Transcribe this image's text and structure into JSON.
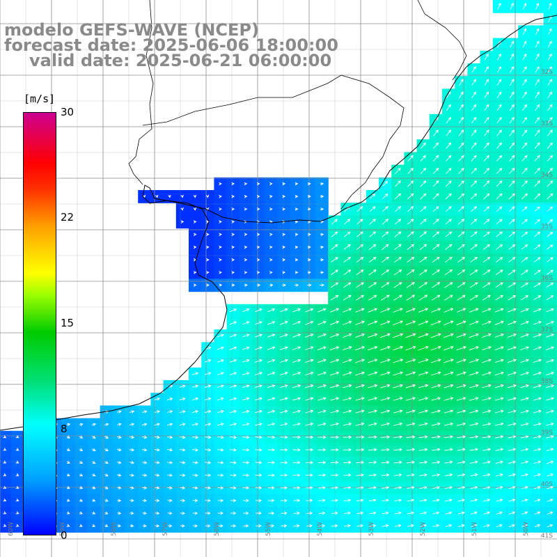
{
  "title": {
    "line1": "modelo GEFS-WAVE (NCEP)",
    "line2": "forecast date: 2025-06-06 18:00:00",
    "line3": "valid date: 2025-06-21 06:00:00"
  },
  "colorbar": {
    "unit": "[m/s]",
    "ticks": [
      "30",
      "22",
      "15",
      "8",
      "0"
    ],
    "tick_values": [
      30,
      22,
      15,
      8,
      0
    ],
    "colors": [
      "#0000ff",
      "#00a0ff",
      "#00ffff",
      "#00cc00",
      "#ffff00",
      "#ff0000",
      "#cc0090"
    ]
  },
  "lat_labels": [
    "32S",
    "33S",
    "34S",
    "35S",
    "36S",
    "37S",
    "38S",
    "39S",
    "40S",
    "41S"
  ],
  "lon_labels": [
    "60W",
    "59W",
    "58W",
    "57W",
    "56W",
    "55W",
    "54W",
    "53W",
    "52W",
    "51W",
    "50W"
  ],
  "colors": {
    "land": "#ffffff",
    "coast": "#000000",
    "grid": "#8c8c8c",
    "title_text": "#8a8a8a",
    "arrow": "#ffffff"
  },
  "field": {
    "variable": "wind speed",
    "arrow_direction": "toward northeast offshore, eastward in estuary",
    "max_speed_region": "offshore southeast, about 13 m/s",
    "estuary_speed": "about 1-2 m/s"
  }
}
